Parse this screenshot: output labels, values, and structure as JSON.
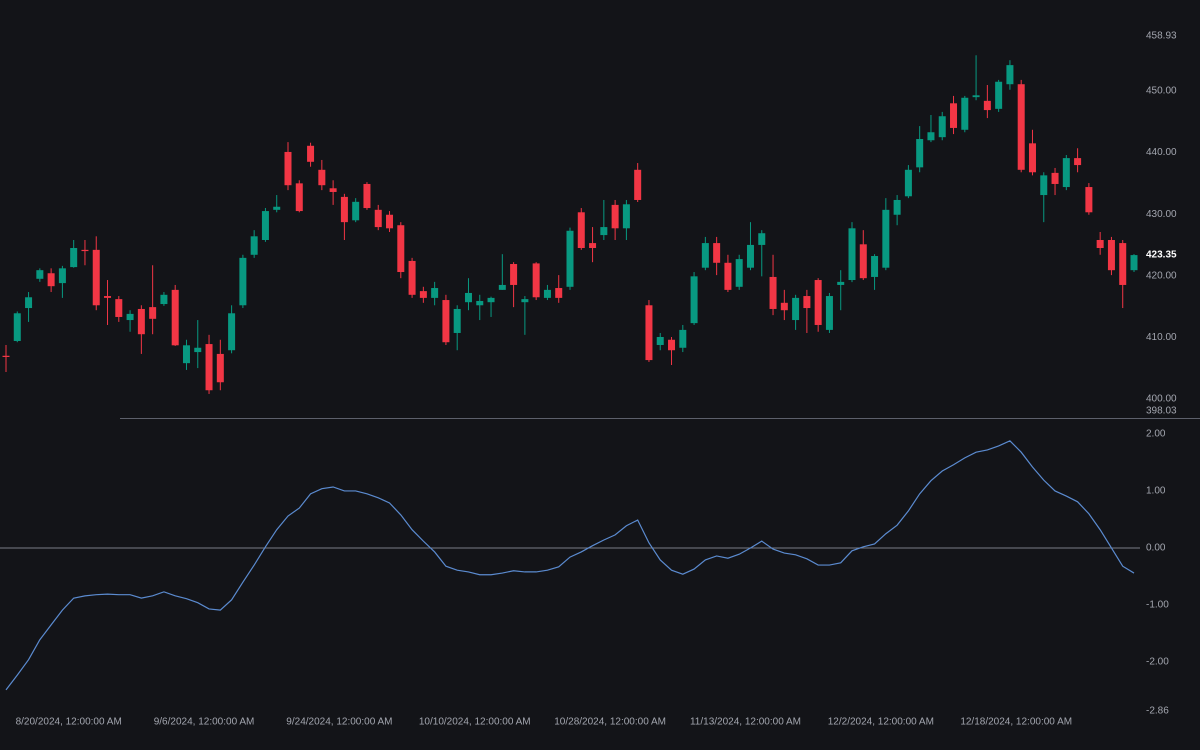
{
  "chart_data": [
    {
      "type": "candlestick",
      "categories": [
        null,
        null,
        null,
        null,
        null,
        null,
        "8/20/2024, 12:00:00 AM",
        null,
        null,
        null,
        null,
        null,
        null,
        null,
        null,
        null,
        null,
        null,
        "9/6/2024, 12:00:00 AM",
        null,
        null,
        null,
        null,
        null,
        null,
        null,
        null,
        null,
        null,
        null,
        "9/24/2024, 12:00:00 AM",
        null,
        null,
        null,
        null,
        null,
        null,
        null,
        null,
        null,
        null,
        null,
        "10/10/2024, 12:00:00 AM",
        null,
        null,
        null,
        null,
        null,
        null,
        null,
        null,
        null,
        null,
        null,
        "10/28/2024, 12:00:00 AM",
        null,
        null,
        null,
        null,
        null,
        null,
        null,
        null,
        null,
        null,
        null,
        "11/13/2024, 12:00:00 AM",
        null,
        null,
        null,
        null,
        null,
        null,
        null,
        null,
        null,
        null,
        null,
        "12/2/2024, 12:00:00 AM",
        null,
        null,
        null,
        null,
        null,
        null,
        null,
        null,
        null,
        null,
        null,
        "12/18/2024, 12:00:00 AM",
        null,
        null,
        null,
        null,
        null,
        null,
        null,
        null,
        null,
        null
      ],
      "open": [
        407.0,
        409.4,
        414.75,
        419.5,
        420.4,
        418.8,
        421.4,
        424.2,
        424.2,
        416.7,
        416.2,
        412.8,
        414.6,
        414.9,
        415.4,
        417.7,
        405.8,
        407.6,
        408.9,
        407.3,
        407.9,
        415.2,
        423.4,
        425.8,
        430.7,
        440.1,
        435.0,
        441.1,
        437.2,
        434.2,
        432.8,
        429.0,
        434.9,
        430.7,
        429.9,
        428.2,
        422.4,
        417.5,
        416.4,
        416.05,
        410.7,
        415.7,
        415.2,
        415.7,
        417.7,
        421.9,
        415.7,
        422.0,
        416.4,
        418.0,
        418.2,
        430.3,
        425.3,
        426.6,
        431.5,
        427.7,
        437.2,
        415.2,
        408.75,
        409.6,
        408.3,
        412.3,
        421.3,
        425.3,
        422.1,
        418.2,
        421.3,
        425.0,
        419.8,
        415.6,
        412.8,
        416.7,
        419.3,
        411.2,
        418.5,
        419.3,
        425.1,
        419.8,
        421.3,
        429.9,
        432.9,
        437.6,
        442.0,
        442.5,
        448.0,
        443.7,
        449.0,
        448.4,
        447.1,
        451.1,
        451.1,
        441.5,
        433.1,
        436.7,
        434.4,
        439.1,
        434.4,
        425.8,
        425.8,
        425.3,
        420.9
      ],
      "high": [
        408.75,
        414.2,
        417.35,
        421.2,
        421.2,
        421.6,
        425.8,
        425.8,
        426.4,
        419.3,
        416.7,
        414.4,
        415.2,
        421.7,
        417.35,
        418.5,
        409.6,
        412.8,
        410.4,
        409.6,
        415.2,
        423.4,
        427.4,
        431.0,
        433.1,
        441.7,
        435.5,
        441.6,
        438.8,
        435.5,
        433.3,
        432.6,
        435.2,
        431.5,
        430.5,
        428.7,
        422.9,
        418.2,
        419.0,
        416.9,
        415.2,
        419.6,
        416.9,
        416.6,
        423.5,
        422.2,
        416.7,
        422.2,
        418.5,
        420.1,
        427.8,
        430.99,
        427.9,
        432.3,
        432.3,
        432.3,
        438.3,
        416.05,
        410.7,
        410.05,
        412.0,
        420.6,
        426.3,
        426.3,
        423.4,
        423.4,
        428.7,
        427.4,
        423.4,
        417.7,
        416.9,
        417.7,
        419.6,
        417.2,
        420.9,
        428.7,
        427.4,
        423.5,
        432.6,
        433.1,
        437.97,
        444.3,
        446.1,
        446.6,
        449.2,
        449.2,
        455.8,
        450.97,
        451.8,
        455.0,
        451.8,
        443.7,
        436.8,
        437.5,
        439.6,
        440.7,
        435.05,
        427.1,
        426.3,
        425.8,
        423.5
      ],
      "low": [
        404.36,
        409.2,
        412.5,
        419.0,
        417.35,
        416.4,
        421.3,
        421.7,
        414.4,
        412.0,
        412.5,
        410.9,
        407.3,
        410.5,
        415.1,
        408.6,
        404.7,
        405.0,
        400.8,
        401.4,
        407.4,
        414.75,
        422.9,
        425.5,
        430.3,
        433.9,
        430.3,
        437.7,
        433.9,
        431.5,
        425.8,
        428.7,
        430.7,
        427.4,
        427.1,
        419.6,
        416.4,
        415.6,
        415.2,
        408.75,
        407.9,
        414.4,
        412.8,
        413.3,
        417.7,
        414.9,
        410.4,
        416.05,
        416.05,
        415.6,
        417.7,
        424.2,
        422.2,
        425.8,
        425.8,
        425.8,
        431.97,
        406.0,
        407.9,
        405.5,
        407.6,
        412.0,
        420.9,
        420.1,
        417.35,
        417.7,
        420.9,
        419.9,
        413.6,
        412.8,
        411.2,
        410.7,
        410.9,
        410.7,
        414.4,
        418.96,
        419.3,
        417.7,
        420.9,
        428.2,
        432.6,
        436.8,
        441.7,
        442.0,
        443.0,
        443.3,
        448.5,
        445.6,
        446.6,
        450.2,
        436.8,
        436.3,
        428.7,
        433.1,
        433.9,
        436.8,
        429.9,
        423.4,
        420.1,
        414.75,
        420.6
      ],
      "close": [
        406.8,
        413.9,
        416.5,
        420.9,
        418.3,
        421.2,
        424.5,
        424.0,
        415.2,
        416.4,
        413.3,
        413.8,
        410.5,
        413.0,
        416.9,
        408.7,
        408.7,
        408.3,
        401.4,
        402.7,
        413.9,
        422.9,
        426.4,
        430.5,
        431.2,
        434.7,
        430.5,
        438.5,
        434.7,
        433.6,
        428.7,
        432.0,
        430.99,
        427.9,
        427.7,
        420.6,
        416.9,
        416.4,
        418.0,
        409.2,
        414.6,
        417.2,
        415.9,
        416.4,
        418.5,
        418.5,
        416.2,
        416.5,
        417.7,
        416.4,
        427.3,
        424.5,
        424.5,
        427.9,
        427.7,
        431.6,
        432.3,
        406.3,
        410.05,
        407.9,
        411.2,
        419.9,
        425.3,
        422.1,
        417.7,
        422.7,
        425.0,
        426.9,
        414.6,
        414.4,
        416.4,
        414.75,
        412.0,
        416.7,
        419.0,
        427.7,
        419.6,
        423.2,
        430.7,
        432.3,
        437.2,
        442.2,
        443.3,
        445.9,
        444.0,
        448.9,
        449.3,
        446.9,
        451.5,
        454.2,
        437.2,
        436.8,
        436.3,
        434.9,
        439.1,
        437.97,
        430.3,
        424.5,
        420.9,
        418.5,
        423.35
      ],
      "up_color": "#089981",
      "down_color": "#f23645",
      "ylim": [
        398.03,
        458.93
      ],
      "yticks": [
        {
          "value": 398.03,
          "label": "398.03"
        },
        {
          "value": 400,
          "label": "400.00"
        },
        {
          "value": 410,
          "label": "410.00"
        },
        {
          "value": 420,
          "label": "420.00"
        },
        {
          "value": 430,
          "label": "430.00"
        },
        {
          "value": 440,
          "label": "440.00"
        },
        {
          "value": 450,
          "label": "450.00"
        },
        {
          "value": 458.93,
          "label": "458.93"
        }
      ]
    },
    {
      "type": "line",
      "series": [
        {
          "color": "#5b8bd0",
          "values": [
            -2.49,
            -2.23,
            -1.96,
            -1.61,
            -1.35,
            -1.09,
            -0.88,
            -0.84,
            -0.82,
            -0.81,
            -0.82,
            -0.82,
            -0.88,
            -0.84,
            -0.77,
            -0.84,
            -0.89,
            -0.96,
            -1.07,
            -1.09,
            -0.91,
            -0.6,
            -0.3,
            0.02,
            0.32,
            0.56,
            0.7,
            0.95,
            1.04,
            1.07,
            1.0,
            1.0,
            0.95,
            0.88,
            0.79,
            0.58,
            0.32,
            0.12,
            -0.07,
            -0.32,
            -0.39,
            -0.42,
            -0.47,
            -0.47,
            -0.44,
            -0.4,
            -0.42,
            -0.42,
            -0.39,
            -0.33,
            -0.16,
            -0.07,
            0.04,
            0.14,
            0.23,
            0.39,
            0.49,
            0.09,
            -0.21,
            -0.39,
            -0.46,
            -0.37,
            -0.21,
            -0.14,
            -0.18,
            -0.11,
            0.0,
            0.12,
            -0.02,
            -0.09,
            -0.12,
            -0.19,
            -0.3,
            -0.3,
            -0.26,
            -0.05,
            0.02,
            0.07,
            0.25,
            0.4,
            0.65,
            0.95,
            1.18,
            1.35,
            1.46,
            1.58,
            1.68,
            1.72,
            1.79,
            1.88,
            1.68,
            1.42,
            1.19,
            1.0,
            0.91,
            0.81,
            0.6,
            0.32,
            0.0,
            -0.32,
            -0.44
          ]
        }
      ],
      "ylim": [
        -2.86,
        2.28
      ],
      "yticks": [
        {
          "value": -2.86,
          "label": "-2.86"
        },
        {
          "value": -2,
          "label": "-2.00"
        },
        {
          "value": -1,
          "label": "-1.00"
        },
        {
          "value": 0,
          "label": "0.00"
        },
        {
          "value": 1,
          "label": "1.00"
        },
        {
          "value": 2,
          "label": "2.00"
        }
      ],
      "zero_line": true
    }
  ]
}
